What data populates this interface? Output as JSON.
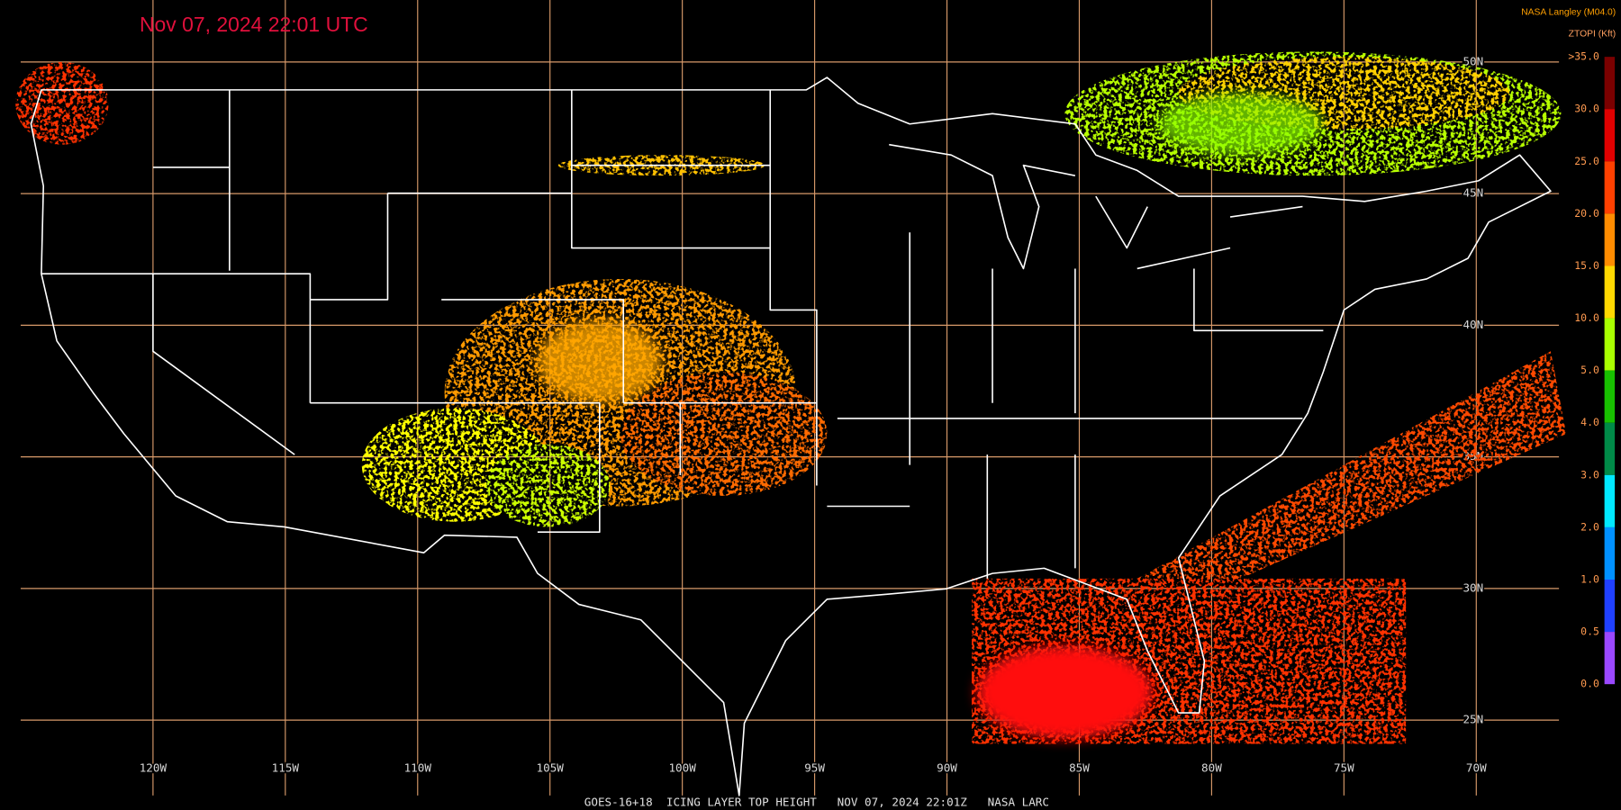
{
  "header": {
    "title": "Nov 07, 2024 22:01 UTC",
    "source": "NASA Langley (M04.0)",
    "product": "ZTOPI (Kft)"
  },
  "colorbar": {
    "labels": [
      ">35.0",
      "30.0",
      "25.0",
      "20.0",
      "15.0",
      "10.0",
      "5.0",
      "4.0",
      "3.0",
      "2.0",
      "1.0",
      "0.5",
      "0.0"
    ],
    "colors": [
      "#7a0000",
      "#e00000",
      "#ff4000",
      "#ff8c00",
      "#ffd800",
      "#a8ff00",
      "#18c000",
      "#008a48",
      "#00e8ff",
      "#0090ff",
      "#2040ff",
      "#9a48ff"
    ]
  },
  "grid": {
    "latitudes": [
      "50N",
      "45N",
      "40N",
      "35N",
      "30N",
      "25N"
    ],
    "longitudes": [
      "120W",
      "115W",
      "110W",
      "105W",
      "100W",
      "95W",
      "90W",
      "85W",
      "80W",
      "75W",
      "70W"
    ]
  },
  "footer": "GOES-16+18  ICING LAYER TOP HEIGHT   NOV 07, 2024 22:01Z   NASA LARC"
}
